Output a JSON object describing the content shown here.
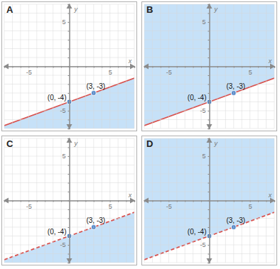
{
  "chart_data": [
    {
      "type": "line",
      "title": "A",
      "xlabel": "x",
      "ylabel": "y",
      "grid": true,
      "xlim": [
        -8,
        8
      ],
      "ylim": [
        -7,
        7
      ],
      "xticks": [
        {
          "value": -8,
          "label": null
        },
        {
          "value": -7,
          "label": null
        },
        {
          "value": -6,
          "label": null
        },
        -5,
        {
          "value": -4,
          "label": null
        },
        {
          "value": -3,
          "label": null
        },
        {
          "value": -2,
          "label": null
        },
        {
          "value": -1,
          "label": null
        },
        {
          "value": 0,
          "label": null
        },
        {
          "value": 1,
          "label": null
        },
        {
          "value": 2,
          "label": null
        },
        {
          "value": 3,
          "label": null
        },
        {
          "value": 4,
          "label": null
        },
        5,
        {
          "value": 6,
          "label": null
        },
        {
          "value": 7,
          "label": null
        },
        {
          "value": 8,
          "label": null
        }
      ],
      "yticks": [
        {
          "value": -7,
          "label": null
        },
        {
          "value": -6,
          "label": null
        },
        -5,
        {
          "value": -4,
          "label": null
        },
        {
          "value": -3,
          "label": null
        },
        {
          "value": -2,
          "label": null
        },
        {
          "value": -1,
          "label": null
        },
        {
          "value": 0,
          "label": null
        },
        {
          "value": 1,
          "label": null
        },
        {
          "value": 2,
          "label": null
        },
        {
          "value": 3,
          "label": null
        },
        {
          "value": 4,
          "label": null
        },
        5,
        {
          "value": 6,
          "label": null
        },
        {
          "value": 7,
          "label": null
        }
      ],
      "series": [
        {
          "type": "area",
          "color": "#bcdcf7",
          "x": [
            -8,
            8
          ],
          "values": [
            -6.67,
            -1.33
          ],
          "base": [
            -7,
            -7
          ]
        },
        {
          "type": "line",
          "color": "#d9534f",
          "line_style": "solid",
          "x": [
            -8,
            0,
            3,
            8
          ],
          "values": [
            -6.67,
            -4,
            -3,
            -1.33
          ]
        },
        {
          "type": "scatter",
          "color": "#3d7cc9",
          "marker": "circle",
          "x": [
            0,
            3
          ],
          "values": [
            -4,
            -3
          ]
        }
      ],
      "annotations": [
        {
          "text": "(0, -4)",
          "x": 0,
          "y": -4
        },
        {
          "text": "(3, -3)",
          "x": 3,
          "y": -3
        }
      ]
    },
    {
      "type": "line",
      "title": "B",
      "xlabel": "x",
      "ylabel": "y",
      "grid": true,
      "xlim": [
        -8,
        8
      ],
      "ylim": [
        -7,
        7
      ],
      "xticks": [
        {
          "value": -8,
          "label": null
        },
        {
          "value": -7,
          "label": null
        },
        {
          "value": -6,
          "label": null
        },
        -5,
        {
          "value": -4,
          "label": null
        },
        {
          "value": -3,
          "label": null
        },
        {
          "value": -2,
          "label": null
        },
        {
          "value": -1,
          "label": null
        },
        {
          "value": 0,
          "label": null
        },
        {
          "value": 1,
          "label": null
        },
        {
          "value": 2,
          "label": null
        },
        {
          "value": 3,
          "label": null
        },
        {
          "value": 4,
          "label": null
        },
        5,
        {
          "value": 6,
          "label": null
        },
        {
          "value": 7,
          "label": null
        },
        {
          "value": 8,
          "label": null
        }
      ],
      "yticks": [
        {
          "value": -7,
          "label": null
        },
        {
          "value": -6,
          "label": null
        },
        -5,
        {
          "value": -4,
          "label": null
        },
        {
          "value": -3,
          "label": null
        },
        {
          "value": -2,
          "label": null
        },
        {
          "value": -1,
          "label": null
        },
        {
          "value": 0,
          "label": null
        },
        {
          "value": 1,
          "label": null
        },
        {
          "value": 2,
          "label": null
        },
        {
          "value": 3,
          "label": null
        },
        {
          "value": 4,
          "label": null
        },
        5,
        {
          "value": 6,
          "label": null
        },
        {
          "value": 7,
          "label": null
        }
      ],
      "series": [
        {
          "type": "area",
          "color": "#bcdcf7",
          "x": [
            -8,
            8
          ],
          "values": [
            -6.67,
            -1.33
          ],
          "base": [
            7,
            7
          ]
        },
        {
          "type": "line",
          "color": "#d9534f",
          "line_style": "solid",
          "x": [
            -8,
            0,
            3,
            8
          ],
          "values": [
            -6.67,
            -4,
            -3,
            -1.33
          ]
        },
        {
          "type": "scatter",
          "color": "#3d7cc9",
          "marker": "circle",
          "x": [
            0,
            3
          ],
          "values": [
            -4,
            -3
          ]
        }
      ],
      "annotations": [
        {
          "text": "(0, -4)",
          "x": 0,
          "y": -4
        },
        {
          "text": "(3, -3)",
          "x": 3,
          "y": -3
        }
      ]
    },
    {
      "type": "line",
      "title": "C",
      "xlabel": "x",
      "ylabel": "y",
      "grid": true,
      "xlim": [
        -8,
        8
      ],
      "ylim": [
        -7,
        7
      ],
      "xticks": [
        {
          "value": -8,
          "label": null
        },
        {
          "value": -7,
          "label": null
        },
        {
          "value": -6,
          "label": null
        },
        -5,
        {
          "value": -4,
          "label": null
        },
        {
          "value": -3,
          "label": null
        },
        {
          "value": -2,
          "label": null
        },
        {
          "value": -1,
          "label": null
        },
        {
          "value": 0,
          "label": null
        },
        {
          "value": 1,
          "label": null
        },
        {
          "value": 2,
          "label": null
        },
        {
          "value": 3,
          "label": null
        },
        {
          "value": 4,
          "label": null
        },
        5,
        {
          "value": 6,
          "label": null
        },
        {
          "value": 7,
          "label": null
        },
        {
          "value": 8,
          "label": null
        }
      ],
      "yticks": [
        {
          "value": -7,
          "label": null
        },
        {
          "value": -6,
          "label": null
        },
        -5,
        {
          "value": -4,
          "label": null
        },
        {
          "value": -3,
          "label": null
        },
        {
          "value": -2,
          "label": null
        },
        {
          "value": -1,
          "label": null
        },
        {
          "value": 0,
          "label": null
        },
        {
          "value": 1,
          "label": null
        },
        {
          "value": 2,
          "label": null
        },
        {
          "value": 3,
          "label": null
        },
        {
          "value": 4,
          "label": null
        },
        5,
        {
          "value": 6,
          "label": null
        },
        {
          "value": 7,
          "label": null
        }
      ],
      "series": [
        {
          "type": "area",
          "color": "#bcdcf7",
          "x": [
            -8,
            8
          ],
          "values": [
            -6.67,
            -1.33
          ],
          "base": [
            -7,
            -7
          ]
        },
        {
          "type": "line",
          "color": "#d9534f",
          "line_style": "dashed",
          "x": [
            -8,
            0,
            3,
            8
          ],
          "values": [
            -6.67,
            -4,
            -3,
            -1.33
          ]
        },
        {
          "type": "scatter",
          "color": "#3d7cc9",
          "marker": "circle",
          "x": [
            0,
            3
          ],
          "values": [
            -4,
            -3
          ]
        }
      ],
      "annotations": [
        {
          "text": "(0, -4)",
          "x": 0,
          "y": -4
        },
        {
          "text": "(3, -3)",
          "x": 3,
          "y": -3
        }
      ]
    },
    {
      "type": "line",
      "title": "D",
      "xlabel": "x",
      "ylabel": "y",
      "grid": true,
      "xlim": [
        -8,
        8
      ],
      "ylim": [
        -7,
        7
      ],
      "xticks": [
        {
          "value": -8,
          "label": null
        },
        {
          "value": -7,
          "label": null
        },
        {
          "value": -6,
          "label": null
        },
        -5,
        {
          "value": -4,
          "label": null
        },
        {
          "value": -3,
          "label": null
        },
        {
          "value": -2,
          "label": null
        },
        {
          "value": -1,
          "label": null
        },
        {
          "value": 0,
          "label": null
        },
        {
          "value": 1,
          "label": null
        },
        {
          "value": 2,
          "label": null
        },
        {
          "value": 3,
          "label": null
        },
        {
          "value": 4,
          "label": null
        },
        5,
        {
          "value": 6,
          "label": null
        },
        {
          "value": 7,
          "label": null
        },
        {
          "value": 8,
          "label": null
        }
      ],
      "yticks": [
        {
          "value": -7,
          "label": null
        },
        {
          "value": -6,
          "label": null
        },
        -5,
        {
          "value": -4,
          "label": null
        },
        {
          "value": -3,
          "label": null
        },
        {
          "value": -2,
          "label": null
        },
        {
          "value": -1,
          "label": null
        },
        {
          "value": 0,
          "label": null
        },
        {
          "value": 1,
          "label": null
        },
        {
          "value": 2,
          "label": null
        },
        {
          "value": 3,
          "label": null
        },
        {
          "value": 4,
          "label": null
        },
        5,
        {
          "value": 6,
          "label": null
        },
        {
          "value": 7,
          "label": null
        }
      ],
      "series": [
        {
          "type": "area",
          "color": "#bcdcf7",
          "x": [
            -8,
            8
          ],
          "values": [
            -6.67,
            -1.33
          ],
          "base": [
            7,
            7
          ]
        },
        {
          "type": "line",
          "color": "#d9534f",
          "line_style": "dashed",
          "x": [
            -8,
            0,
            3,
            8
          ],
          "values": [
            -6.67,
            -4,
            -3,
            -1.33
          ]
        },
        {
          "type": "scatter",
          "color": "#3d7cc9",
          "marker": "circle",
          "x": [
            0,
            3
          ],
          "values": [
            -4,
            -3
          ]
        }
      ],
      "annotations": [
        {
          "text": "(0, -4)",
          "x": 0,
          "y": -4
        },
        {
          "text": "(3, -3)",
          "x": 3,
          "y": -3
        }
      ]
    }
  ]
}
